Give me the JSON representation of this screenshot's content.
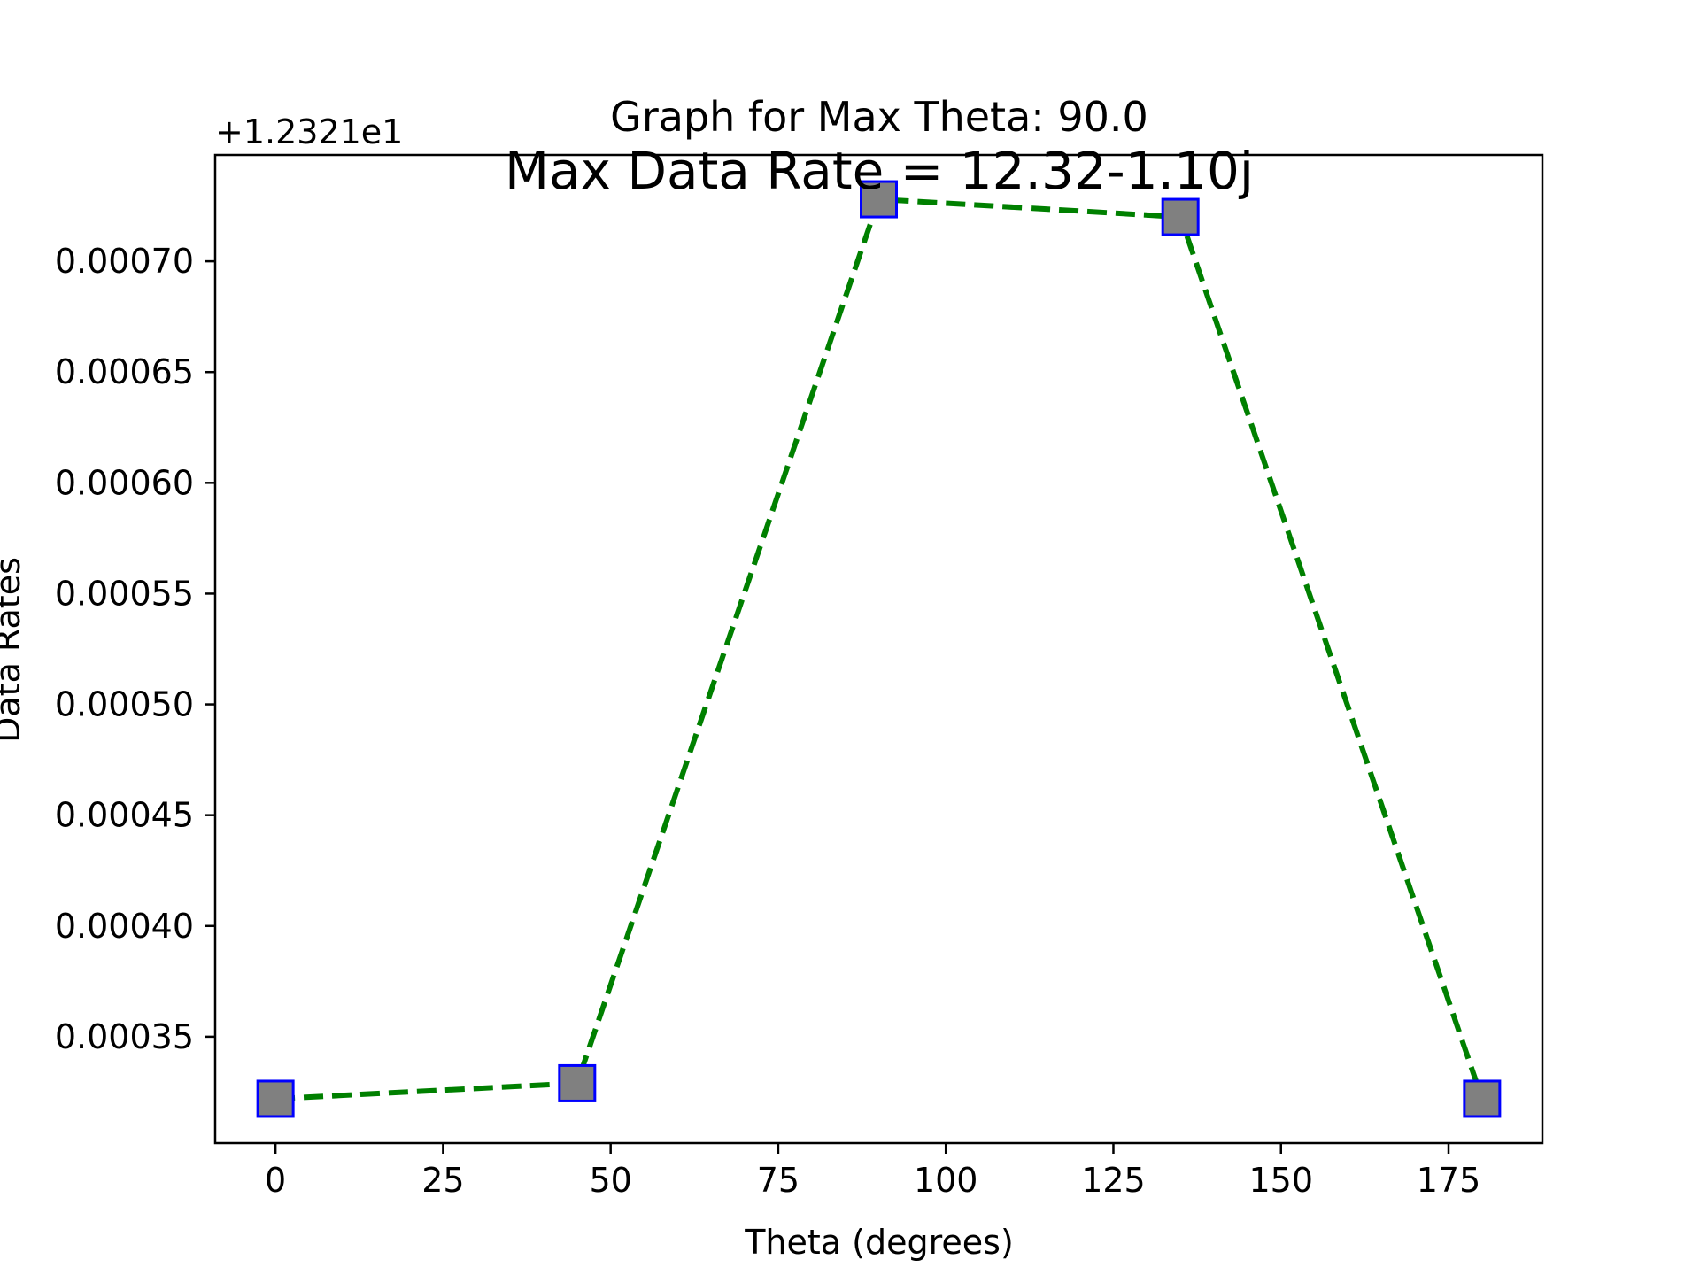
{
  "chart_data": {
    "type": "line",
    "title": "Graph for Max Theta: 90.0",
    "subtitle": "Max Data Rate = 12.32-1.10j",
    "xlabel": "Theta (degrees)",
    "ylabel": "Data Rates",
    "y_offset_label": "+1.2321e1",
    "xlim": [
      -9,
      189
    ],
    "ylim": [
      0.000302,
      0.000748
    ],
    "x_ticks": [
      0,
      25,
      50,
      75,
      100,
      125,
      150,
      175
    ],
    "x_tick_labels": [
      "0",
      "25",
      "50",
      "75",
      "100",
      "125",
      "150",
      "175"
    ],
    "y_ticks": [
      0.00035,
      0.0004,
      0.00045,
      0.0005,
      0.00055,
      0.0006,
      0.00065,
      0.0007
    ],
    "y_tick_labels": [
      "0.00035",
      "0.00040",
      "0.00045",
      "0.00050",
      "0.00055",
      "0.00060",
      "0.00065",
      "0.00070"
    ],
    "grid": false,
    "series": [
      {
        "x": [
          0,
          45,
          90,
          135,
          180
        ],
        "y": [
          0.000322,
          0.000329,
          0.000728,
          0.00072,
          0.000322
        ],
        "line_color": "#008000",
        "line_style": "dashed",
        "marker": "square",
        "marker_face_color": "#808080",
        "marker_edge_color": "#0000ff"
      }
    ]
  }
}
